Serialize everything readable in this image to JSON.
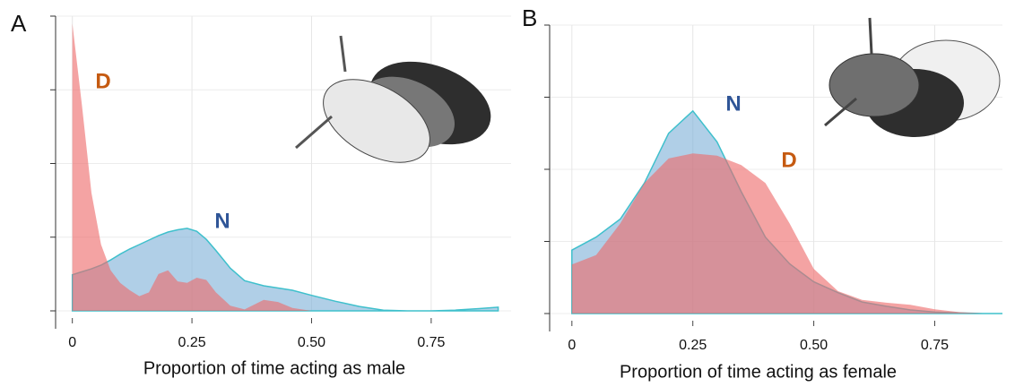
{
  "chart_data": [
    {
      "type": "density",
      "panel": "A",
      "xlabel": "Proportion of time acting as male",
      "x": [
        0,
        0.02,
        0.04,
        0.06,
        0.08,
        0.1,
        0.12,
        0.14,
        0.16,
        0.18,
        0.2,
        0.22,
        0.24,
        0.26,
        0.28,
        0.3,
        0.33,
        0.36,
        0.4,
        0.43,
        0.46,
        0.5,
        0.55,
        0.6,
        0.65,
        0.7,
        0.75,
        0.8,
        0.85,
        0.89
      ],
      "series": [
        {
          "name": "N",
          "color": "#7fb2d9",
          "stroke": "#3fc0cc",
          "label_color": "#2f5597",
          "values": [
            0.49,
            0.53,
            0.57,
            0.62,
            0.69,
            0.77,
            0.84,
            0.9,
            0.96,
            1.02,
            1.07,
            1.1,
            1.12,
            1.08,
            0.97,
            0.82,
            0.58,
            0.41,
            0.34,
            0.31,
            0.28,
            0.21,
            0.13,
            0.06,
            0.01,
            0,
            0,
            0.01,
            0.03,
            0.05
          ]
        },
        {
          "name": "D",
          "color": "#ee6a6a",
          "label_color": "#c55a11",
          "values": [
            3.9,
            2.8,
            1.6,
            0.9,
            0.55,
            0.38,
            0.28,
            0.2,
            0.25,
            0.5,
            0.55,
            0.4,
            0.38,
            0.45,
            0.42,
            0.25,
            0.07,
            0.02,
            0.15,
            0.12,
            0.04,
            0,
            0,
            0,
            0,
            0,
            0,
            0,
            0,
            0
          ]
        }
      ],
      "xlim": [
        -0.035,
        0.917
      ],
      "ylim": [
        0,
        4
      ],
      "xticks": [
        0,
        0.25,
        {
          "value": 0.5,
          "label": "0.50"
        },
        0.75
      ],
      "grid": true
    },
    {
      "type": "density",
      "panel": "B",
      "xlabel": "Proportion of time acting as female",
      "x": [
        0,
        0.05,
        0.1,
        0.15,
        0.2,
        0.25,
        0.3,
        0.35,
        0.4,
        0.45,
        0.5,
        0.55,
        0.6,
        0.65,
        0.7,
        0.75,
        0.8,
        0.85,
        0.89
      ],
      "series": [
        {
          "name": "N",
          "color": "#7fb2d9",
          "stroke": "#3fc0cc",
          "label_color": "#2f5597",
          "values": [
            0.88,
            1.06,
            1.31,
            1.81,
            2.5,
            2.81,
            2.38,
            1.69,
            1.06,
            0.69,
            0.44,
            0.29,
            0.16,
            0.1,
            0.05,
            0.02,
            0.01,
            0,
            0
          ]
        },
        {
          "name": "D",
          "color": "#ee6a6a",
          "label_color": "#c55a11",
          "values": [
            0.68,
            0.81,
            1.25,
            1.81,
            2.15,
            2.22,
            2.19,
            2.06,
            1.81,
            1.25,
            0.62,
            0.31,
            0.19,
            0.15,
            0.12,
            0.06,
            0.02,
            0,
            0
          ]
        }
      ],
      "xlim": [
        -0.046,
        0.89
      ],
      "ylim": [
        0,
        4
      ],
      "xticks": [
        0,
        0.25,
        {
          "value": 0.5,
          "label": "0.50"
        },
        0.75
      ],
      "grid": true
    }
  ]
}
